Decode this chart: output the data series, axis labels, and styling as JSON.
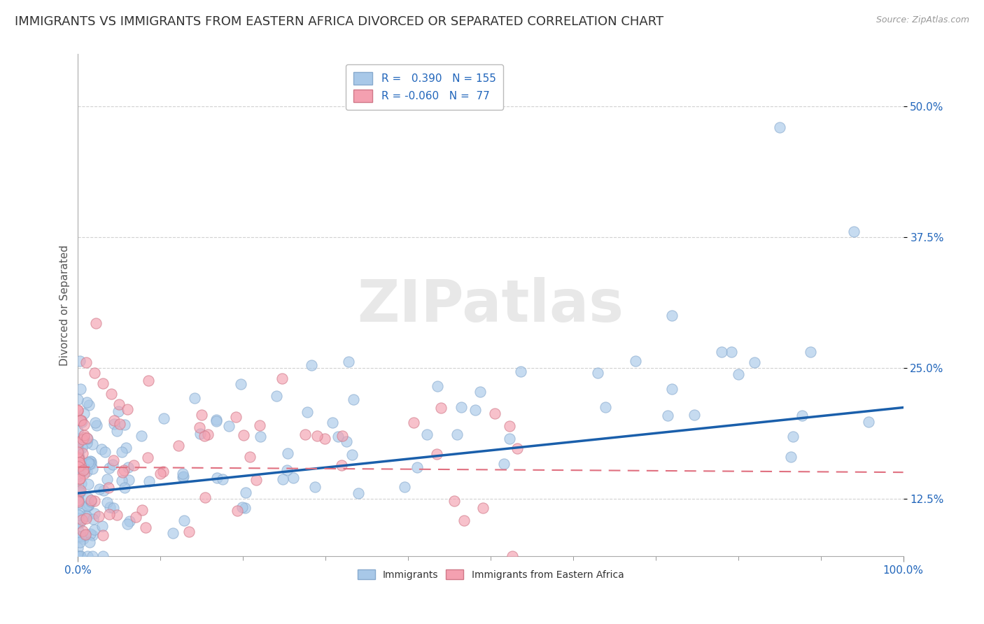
{
  "title": "IMMIGRANTS VS IMMIGRANTS FROM EASTERN AFRICA DIVORCED OR SEPARATED CORRELATION CHART",
  "source": "Source: ZipAtlas.com",
  "ylabel": "Divorced or Separated",
  "xlim": [
    0.0,
    1.0
  ],
  "ylim": [
    0.07,
    0.55
  ],
  "yticks": [
    0.125,
    0.25,
    0.375,
    0.5
  ],
  "ytick_labels": [
    "12.5%",
    "25.0%",
    "37.5%",
    "50.0%"
  ],
  "xtick_labels_edge": [
    "0.0%",
    "100.0%"
  ],
  "xticks_edge": [
    0.0,
    1.0
  ],
  "blue_R": 0.39,
  "blue_N": 155,
  "pink_R": -0.06,
  "pink_N": 77,
  "blue_color": "#A8C8E8",
  "pink_color": "#F4A0B0",
  "blue_line_color": "#1A5FAB",
  "pink_line_color": "#E07080",
  "watermark": "ZIPatlas",
  "background_color": "#FFFFFF",
  "grid_color": "#CCCCCC",
  "title_fontsize": 13,
  "legend_fontsize": 11,
  "axis_label_fontsize": 11
}
